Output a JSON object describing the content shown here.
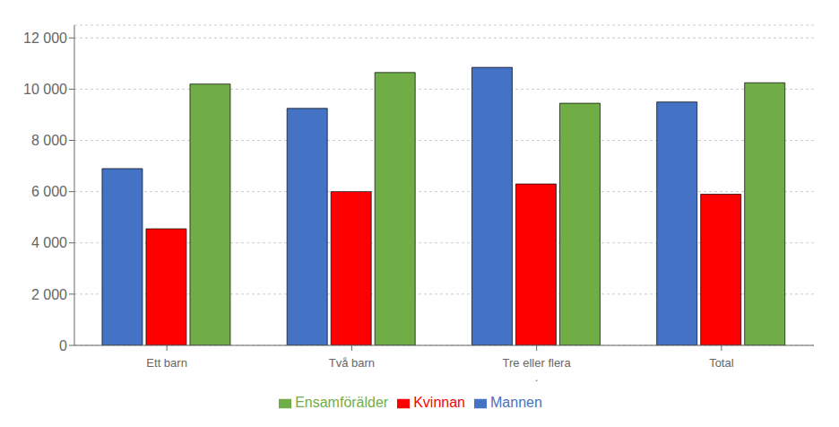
{
  "chart_data": {
    "type": "bar",
    "categories": [
      "Ett barn",
      "Två barn",
      "Tre eller flera\n.",
      "Total"
    ],
    "series": [
      {
        "name": "Mannen",
        "color": "#4472C4",
        "values": [
          6900,
          9250,
          10850,
          9500
        ]
      },
      {
        "name": "Kvinnan",
        "color": "#FF0000",
        "values": [
          4550,
          6000,
          6300,
          5900
        ]
      },
      {
        "name": "Ensamförälder",
        "color": "#70AD47",
        "values": [
          10200,
          10650,
          9450,
          10250
        ]
      }
    ],
    "ylim": [
      0,
      12500
    ],
    "yticks": [
      0,
      {
        "value": 2000,
        "label": "2 000"
      },
      {
        "value": 4000,
        "label": "4 000"
      },
      {
        "value": 6000,
        "label": "6 000"
      },
      {
        "value": 8000,
        "label": "8 000"
      },
      {
        "value": 10000,
        "label": "10 000"
      },
      {
        "value": 12000,
        "label": "12 000"
      }
    ],
    "grid": true,
    "legend": "bottom"
  }
}
